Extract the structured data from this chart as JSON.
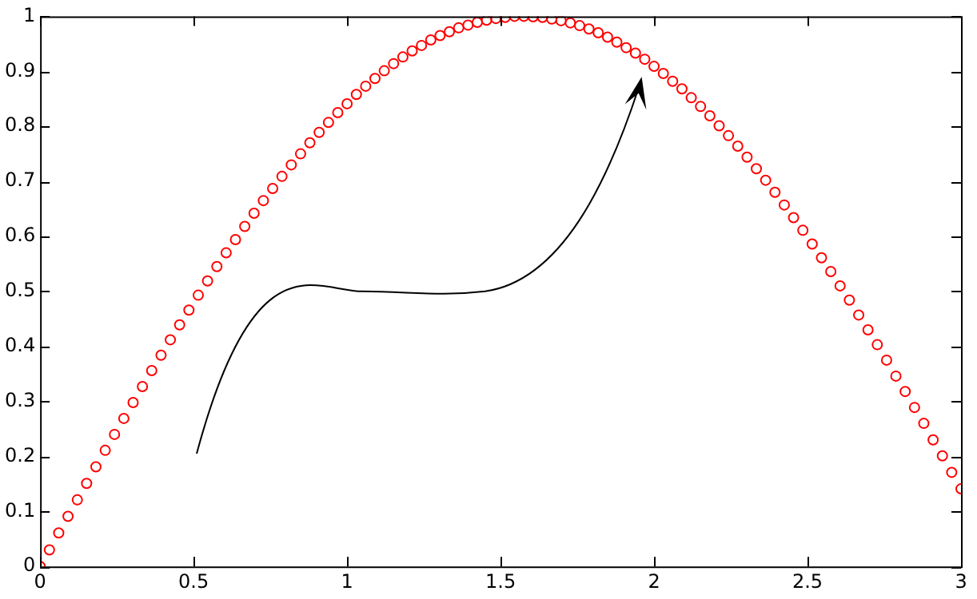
{
  "chart_data": {
    "type": "scatter",
    "marker": "circle",
    "grid": false,
    "legend": false,
    "xlim": [
      0,
      3
    ],
    "xticks": [
      0,
      0.5,
      1,
      1.5,
      2,
      2.5,
      3
    ],
    "ylim": [
      0,
      1
    ],
    "yticks": [
      0,
      0.1,
      0.2,
      0.3,
      0.4,
      0.5,
      0.6,
      0.7,
      0.8,
      0.9,
      1
    ],
    "series": [
      {
        "color": "#ff0000",
        "x": [
          0,
          0.0303,
          0.0606,
          0.0909,
          0.1212,
          0.1515,
          0.1818,
          0.2121,
          0.2424,
          0.2727,
          0.303,
          0.3333,
          0.3636,
          0.3939,
          0.4242,
          0.4545,
          0.4848,
          0.5152,
          0.5455,
          0.5758,
          0.6061,
          0.6364,
          0.6667,
          0.697,
          0.7273,
          0.7576,
          0.7879,
          0.8182,
          0.8485,
          0.8788,
          0.9091,
          0.9394,
          0.9697,
          1,
          1.0303,
          1.0606,
          1.0909,
          1.1212,
          1.1515,
          1.1818,
          1.2121,
          1.2424,
          1.2727,
          1.303,
          1.3333,
          1.3636,
          1.3939,
          1.4242,
          1.4545,
          1.4848,
          1.5152,
          1.5455,
          1.5758,
          1.6061,
          1.6364,
          1.6667,
          1.697,
          1.7273,
          1.7576,
          1.7879,
          1.8182,
          1.8485,
          1.8788,
          1.9091,
          1.9394,
          1.9697,
          2,
          2.0303,
          2.0606,
          2.0909,
          2.1212,
          2.1515,
          2.1818,
          2.2121,
          2.2424,
          2.2727,
          2.303,
          2.3333,
          2.3636,
          2.3939,
          2.4242,
          2.4545,
          2.4848,
          2.5152,
          2.5455,
          2.5758,
          2.6061,
          2.6364,
          2.6667,
          2.697,
          2.7273,
          2.7576,
          2.7879,
          2.8182,
          2.8485,
          2.8788,
          2.9091,
          2.9394,
          2.9697,
          3
        ],
        "values": [
          0,
          0.03,
          0.061,
          0.091,
          0.121,
          0.151,
          0.181,
          0.211,
          0.24,
          0.269,
          0.298,
          0.327,
          0.356,
          0.384,
          0.412,
          0.439,
          0.466,
          0.493,
          0.519,
          0.545,
          0.57,
          0.594,
          0.618,
          0.642,
          0.665,
          0.687,
          0.709,
          0.73,
          0.75,
          0.77,
          0.789,
          0.807,
          0.825,
          0.841,
          0.858,
          0.873,
          0.887,
          0.901,
          0.914,
          0.926,
          0.937,
          0.947,
          0.957,
          0.965,
          0.972,
          0.979,
          0.984,
          0.989,
          0.993,
          0.996,
          0.998,
          1,
          1,
          0.999,
          0.998,
          0.995,
          0.992,
          0.988,
          0.983,
          0.977,
          0.97,
          0.962,
          0.953,
          0.943,
          0.933,
          0.922,
          0.909,
          0.896,
          0.882,
          0.868,
          0.852,
          0.836,
          0.819,
          0.801,
          0.783,
          0.764,
          0.744,
          0.723,
          0.702,
          0.68,
          0.657,
          0.634,
          0.611,
          0.586,
          0.561,
          0.536,
          0.51,
          0.484,
          0.457,
          0.43,
          0.403,
          0.375,
          0.346,
          0.318,
          0.289,
          0.26,
          0.23,
          0.201,
          0.171,
          0.141
        ]
      }
    ]
  }
}
